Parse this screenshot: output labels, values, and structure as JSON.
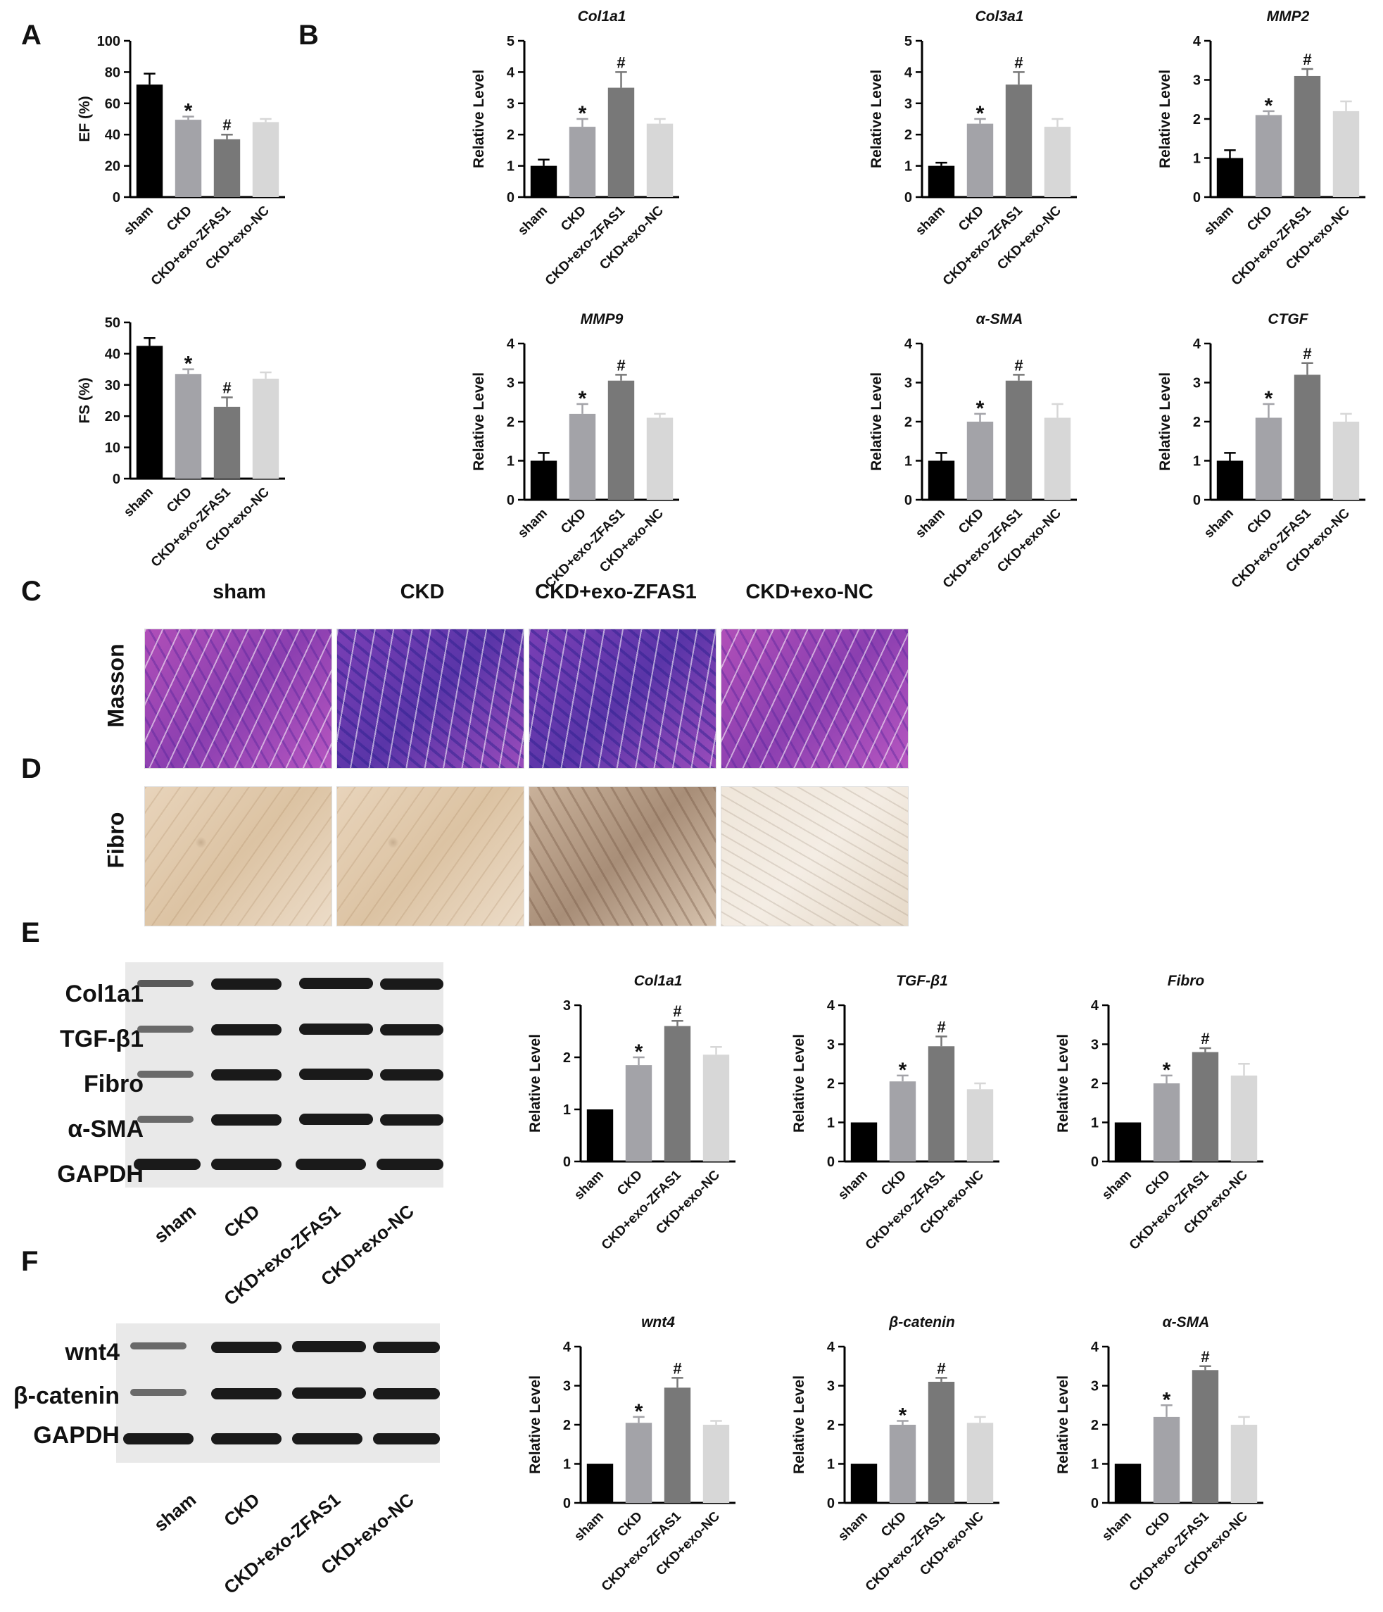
{
  "panel_labels": [
    "A",
    "B",
    "C",
    "D",
    "E",
    "F"
  ],
  "groups": [
    "sham",
    "CKD",
    "CKD+exo-ZFAS1",
    "CKD+exo-NC"
  ],
  "colors": {
    "sham": "#000000",
    "CKD": "#a3a3a8",
    "CKD+exo-ZFAS1": "#787878",
    "CKD+exo-NC": "#d7d7d7"
  },
  "histology": {
    "columns": [
      "sham",
      "CKD",
      "CKD+exo-ZFAS1",
      "CKD+exo-NC"
    ],
    "rows": [
      "Masson",
      "Fibro"
    ]
  },
  "blots": {
    "E": {
      "rows": [
        "Col1a1",
        "TGF-β1",
        "Fibro",
        "α-SMA",
        "GAPDH"
      ],
      "lanes": [
        "sham",
        "CKD",
        "CKD+exo-ZFAS1",
        "CKD+exo-NC"
      ]
    },
    "F": {
      "rows": [
        "wnt4",
        "β-catenin",
        "GAPDH"
      ],
      "lanes": [
        "sham",
        "CKD",
        "CKD+exo-ZFAS1",
        "CKD+exo-NC"
      ]
    }
  },
  "chart_data": [
    {
      "id": "A-EF",
      "type": "bar",
      "title": "",
      "ylabel": "EF (%)",
      "ylim": [
        0,
        100
      ],
      "yticks": [
        0,
        20,
        40,
        60,
        80,
        100
      ],
      "categories": [
        "sham",
        "CKD",
        "CKD+exo-ZFAS1",
        "CKD+exo-NC"
      ],
      "values": [
        72,
        49.5,
        37,
        48
      ],
      "errors": [
        7,
        2,
        3,
        2
      ],
      "annotations": [
        "",
        "*",
        "#",
        ""
      ]
    },
    {
      "id": "A-FS",
      "type": "bar",
      "title": "",
      "ylabel": "FS (%)",
      "ylim": [
        0,
        50
      ],
      "yticks": [
        0,
        10,
        20,
        30,
        40,
        50
      ],
      "categories": [
        "sham",
        "CKD",
        "CKD+exo-ZFAS1",
        "CKD+exo-NC"
      ],
      "values": [
        42.5,
        33.5,
        23,
        32
      ],
      "errors": [
        2.5,
        1.5,
        3,
        2
      ],
      "annotations": [
        "",
        "*",
        "#",
        ""
      ]
    },
    {
      "id": "B-Col1a1",
      "type": "bar",
      "title": "Col1a1",
      "ylabel": "Relative Level",
      "ylim": [
        0,
        5
      ],
      "yticks": [
        0,
        1,
        2,
        3,
        4,
        5
      ],
      "categories": [
        "sham",
        "CKD",
        "CKD+exo-ZFAS1",
        "CKD+exo-NC"
      ],
      "values": [
        1,
        2.25,
        3.5,
        2.35
      ],
      "errors": [
        0.2,
        0.25,
        0.5,
        0.15
      ],
      "annotations": [
        "",
        "*",
        "#",
        ""
      ]
    },
    {
      "id": "B-Col3a1",
      "type": "bar",
      "title": "Col3a1",
      "ylabel": "Relative Level",
      "ylim": [
        0,
        5
      ],
      "yticks": [
        0,
        1,
        2,
        3,
        4,
        5
      ],
      "categories": [
        "sham",
        "CKD",
        "CKD+exo-ZFAS1",
        "CKD+exo-NC"
      ],
      "values": [
        1,
        2.35,
        3.6,
        2.25
      ],
      "errors": [
        0.1,
        0.15,
        0.4,
        0.25
      ],
      "annotations": [
        "",
        "*",
        "#",
        ""
      ]
    },
    {
      "id": "B-MMP2",
      "type": "bar",
      "title": "MMP2",
      "ylabel": "Relative Level",
      "ylim": [
        0,
        4
      ],
      "yticks": [
        0,
        1,
        2,
        3,
        4
      ],
      "categories": [
        "sham",
        "CKD",
        "CKD+exo-ZFAS1",
        "CKD+exo-NC"
      ],
      "values": [
        1,
        2.1,
        3.1,
        2.2
      ],
      "errors": [
        0.2,
        0.1,
        0.18,
        0.25
      ],
      "annotations": [
        "",
        "*",
        "#",
        ""
      ]
    },
    {
      "id": "B-MMP9",
      "type": "bar",
      "title": "MMP9",
      "ylabel": "Relative Level",
      "ylim": [
        0,
        4
      ],
      "yticks": [
        0,
        1,
        2,
        3,
        4
      ],
      "categories": [
        "sham",
        "CKD",
        "CKD+exo-ZFAS1",
        "CKD+exo-NC"
      ],
      "values": [
        1,
        2.2,
        3.05,
        2.1
      ],
      "errors": [
        0.2,
        0.25,
        0.15,
        0.1
      ],
      "annotations": [
        "",
        "*",
        "#",
        ""
      ]
    },
    {
      "id": "B-aSMA",
      "type": "bar",
      "title": "α-SMA",
      "ylabel": "Relative Level",
      "ylim": [
        0,
        4
      ],
      "yticks": [
        0,
        1,
        2,
        3,
        4
      ],
      "categories": [
        "sham",
        "CKD",
        "CKD+exo-ZFAS1",
        "CKD+exo-NC"
      ],
      "values": [
        1,
        2,
        3.05,
        2.1
      ],
      "errors": [
        0.2,
        0.2,
        0.15,
        0.35
      ],
      "annotations": [
        "",
        "*",
        "#",
        ""
      ]
    },
    {
      "id": "B-CTGF",
      "type": "bar",
      "title": "CTGF",
      "ylabel": "Relative Level",
      "ylim": [
        0,
        4
      ],
      "yticks": [
        0,
        1,
        2,
        3,
        4
      ],
      "categories": [
        "sham",
        "CKD",
        "CKD+exo-ZFAS1",
        "CKD+exo-NC"
      ],
      "values": [
        1,
        2.1,
        3.2,
        2
      ],
      "errors": [
        0.2,
        0.35,
        0.3,
        0.2
      ],
      "annotations": [
        "",
        "*",
        "#",
        ""
      ]
    },
    {
      "id": "E-Col1a1",
      "type": "bar",
      "title": "Col1a1",
      "ylabel": "Relative Level",
      "ylim": [
        0,
        3
      ],
      "yticks": [
        0,
        1,
        2,
        3
      ],
      "categories": [
        "sham",
        "CKD",
        "CKD+exo-ZFAS1",
        "CKD+exo-NC"
      ],
      "values": [
        1,
        1.85,
        2.6,
        2.05
      ],
      "errors": [
        0,
        0.15,
        0.1,
        0.15
      ],
      "annotations": [
        "",
        "*",
        "#",
        ""
      ]
    },
    {
      "id": "E-TGFb1",
      "type": "bar",
      "title": "TGF-β1",
      "ylabel": "Relative Level",
      "ylim": [
        0,
        4
      ],
      "yticks": [
        0,
        1,
        2,
        3,
        4
      ],
      "categories": [
        "sham",
        "CKD",
        "CKD+exo-ZFAS1",
        "CKD+exo-NC"
      ],
      "values": [
        1,
        2.05,
        2.95,
        1.85
      ],
      "errors": [
        0,
        0.15,
        0.25,
        0.15
      ],
      "annotations": [
        "",
        "*",
        "#",
        ""
      ]
    },
    {
      "id": "E-Fibro",
      "type": "bar",
      "title": "Fibro",
      "ylabel": "Relative Level",
      "ylim": [
        0,
        4
      ],
      "yticks": [
        0,
        1,
        2,
        3,
        4
      ],
      "categories": [
        "sham",
        "CKD",
        "CKD+exo-ZFAS1",
        "CKD+exo-NC"
      ],
      "values": [
        1,
        2,
        2.8,
        2.2
      ],
      "errors": [
        0,
        0.2,
        0.1,
        0.3
      ],
      "annotations": [
        "",
        "*",
        "#",
        ""
      ]
    },
    {
      "id": "F-wnt4",
      "type": "bar",
      "title": "wnt4",
      "ylabel": "Relative Level",
      "ylim": [
        0,
        4
      ],
      "yticks": [
        0,
        1,
        2,
        3,
        4
      ],
      "categories": [
        "sham",
        "CKD",
        "CKD+exo-ZFAS1",
        "CKD+exo-NC"
      ],
      "values": [
        1,
        2.05,
        2.95,
        2
      ],
      "errors": [
        0,
        0.15,
        0.25,
        0.1
      ],
      "annotations": [
        "",
        "*",
        "#",
        ""
      ]
    },
    {
      "id": "F-bcatenin",
      "type": "bar",
      "title": "β-catenin",
      "ylabel": "Relative Level",
      "ylim": [
        0,
        4
      ],
      "yticks": [
        0,
        1,
        2,
        3,
        4
      ],
      "categories": [
        "sham",
        "CKD",
        "CKD+exo-ZFAS1",
        "CKD+exo-NC"
      ],
      "values": [
        1,
        2,
        3.1,
        2.05
      ],
      "errors": [
        0,
        0.1,
        0.1,
        0.15
      ],
      "annotations": [
        "",
        "*",
        "#",
        ""
      ]
    },
    {
      "id": "F-aSMA",
      "type": "bar",
      "title": "α-SMA",
      "ylabel": "Relative Level",
      "ylim": [
        0,
        4
      ],
      "yticks": [
        0,
        1,
        2,
        3,
        4
      ],
      "categories": [
        "sham",
        "CKD",
        "CKD+exo-ZFAS1",
        "CKD+exo-NC"
      ],
      "values": [
        1,
        2.2,
        3.4,
        2
      ],
      "errors": [
        0,
        0.3,
        0.1,
        0.2
      ],
      "annotations": [
        "",
        "*",
        "#",
        ""
      ]
    }
  ]
}
